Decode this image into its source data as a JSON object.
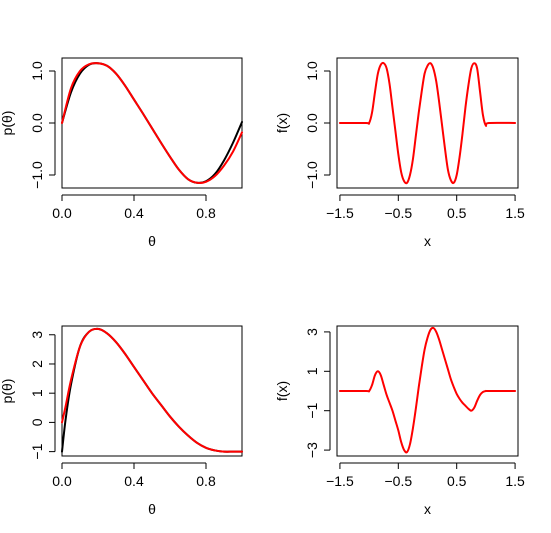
{
  "chart_data": [
    {
      "type": "line",
      "xlabel": "θ",
      "ylabel": "p(θ)",
      "xlim": [
        0,
        1
      ],
      "ylim": [
        -1.25,
        1.25
      ],
      "xticks": [
        0.0,
        0.4,
        0.8
      ],
      "xtick_labels": [
        "0.0",
        "0.4",
        "0.8"
      ],
      "yticks": [
        -1.0,
        0.0,
        1.0
      ],
      "ytick_labels": [
        "−1.0",
        "0.0",
        "1.0"
      ],
      "grid": false,
      "series": [
        {
          "color": "#000000",
          "x": [
            0.0,
            0.05,
            0.1,
            0.15,
            0.2,
            0.25,
            0.3,
            0.35,
            0.4,
            0.45,
            0.5,
            0.55,
            0.6,
            0.65,
            0.7,
            0.75,
            0.8,
            0.85,
            0.9,
            0.95,
            1.0
          ],
          "y": [
            0.0,
            0.59,
            0.95,
            1.12,
            1.15,
            1.1,
            0.95,
            0.72,
            0.45,
            0.18,
            -0.1,
            -0.38,
            -0.65,
            -0.9,
            -1.08,
            -1.15,
            -1.12,
            -0.98,
            -0.72,
            -0.38,
            0.02
          ]
        },
        {
          "color": "#ff0000",
          "x": [
            0.0,
            0.05,
            0.1,
            0.15,
            0.2,
            0.25,
            0.3,
            0.35,
            0.4,
            0.45,
            0.5,
            0.55,
            0.6,
            0.65,
            0.7,
            0.75,
            0.8,
            0.85,
            0.9,
            0.95,
            1.0
          ],
          "y": [
            0.0,
            0.67,
            1.0,
            1.13,
            1.15,
            1.1,
            0.95,
            0.72,
            0.45,
            0.18,
            -0.1,
            -0.38,
            -0.65,
            -0.9,
            -1.08,
            -1.15,
            -1.13,
            -1.02,
            -0.82,
            -0.55,
            -0.18
          ]
        }
      ]
    },
    {
      "type": "line",
      "xlabel": "x",
      "ylabel": "f(x)",
      "xlim": [
        -1.55,
        1.55
      ],
      "ylim": [
        -1.25,
        1.25
      ],
      "xticks": [
        -1.5,
        -0.5,
        0.5,
        1.5
      ],
      "xtick_labels": [
        "−1.5",
        "−0.5",
        "0.5",
        "1.5"
      ],
      "yticks": [
        -1.0,
        0.0,
        1.0
      ],
      "ytick_labels": [
        "−1.0",
        "0.0",
        "1.0"
      ],
      "grid": false,
      "series": [
        {
          "color": "#ff0000",
          "x": [
            -1.5,
            -1.05,
            -1.0,
            -0.95,
            -0.9,
            -0.85,
            -0.8,
            -0.75,
            -0.7,
            -0.65,
            -0.6,
            -0.55,
            -0.5,
            -0.45,
            -0.4,
            -0.35,
            -0.3,
            -0.25,
            -0.2,
            -0.15,
            -0.1,
            -0.05,
            0.0,
            0.05,
            0.1,
            0.15,
            0.2,
            0.25,
            0.3,
            0.35,
            0.4,
            0.45,
            0.5,
            0.55,
            0.6,
            0.65,
            0.7,
            0.75,
            0.8,
            0.85,
            0.9,
            0.95,
            1.0,
            1.05,
            1.5
          ],
          "y": [
            0,
            0,
            0,
            0.2,
            0.59,
            0.95,
            1.12,
            1.15,
            1.05,
            0.75,
            0.3,
            -0.15,
            -0.6,
            -0.95,
            -1.12,
            -1.15,
            -1.0,
            -0.7,
            -0.25,
            0.2,
            0.6,
            0.95,
            1.1,
            1.15,
            1.05,
            0.8,
            0.4,
            -0.05,
            -0.5,
            -0.9,
            -1.1,
            -1.15,
            -1.0,
            -0.65,
            -0.2,
            0.3,
            0.72,
            1.05,
            1.15,
            1.05,
            0.6,
            0.15,
            -0.05,
            0,
            0
          ]
        }
      ]
    },
    {
      "type": "line",
      "xlabel": "θ",
      "ylabel": "p(θ)",
      "xlim": [
        0,
        1
      ],
      "ylim": [
        -1.15,
        3.3
      ],
      "xticks": [
        0.0,
        0.4,
        0.8
      ],
      "xtick_labels": [
        "0.0",
        "0.4",
        "0.8"
      ],
      "yticks": [
        -1,
        0,
        1,
        2,
        3
      ],
      "ytick_labels": [
        "−1",
        "0",
        "1",
        "2",
        "3"
      ],
      "grid": false,
      "series": [
        {
          "color": "#000000",
          "x": [
            0.0,
            0.02,
            0.05,
            0.1,
            0.15,
            0.2,
            0.25,
            0.3,
            0.35,
            0.4,
            0.45,
            0.5,
            0.55,
            0.6,
            0.65,
            0.7,
            0.75,
            0.8,
            0.85,
            0.9,
            0.95,
            1.0
          ],
          "y": [
            -1.0,
            0.1,
            1.3,
            2.6,
            3.1,
            3.2,
            3.05,
            2.75,
            2.35,
            1.9,
            1.45,
            1.0,
            0.6,
            0.2,
            -0.15,
            -0.45,
            -0.7,
            -0.87,
            -0.96,
            -1.0,
            -1.0,
            -1.0
          ]
        },
        {
          "color": "#ff0000",
          "x": [
            0.0,
            0.02,
            0.05,
            0.1,
            0.15,
            0.2,
            0.25,
            0.3,
            0.35,
            0.4,
            0.45,
            0.5,
            0.55,
            0.6,
            0.65,
            0.7,
            0.75,
            0.8,
            0.85,
            0.9,
            0.95,
            1.0
          ],
          "y": [
            0.0,
            0.55,
            1.45,
            2.6,
            3.1,
            3.2,
            3.05,
            2.75,
            2.35,
            1.9,
            1.45,
            1.0,
            0.6,
            0.2,
            -0.15,
            -0.45,
            -0.7,
            -0.87,
            -0.96,
            -1.0,
            -1.0,
            -1.0
          ]
        }
      ]
    },
    {
      "type": "line",
      "xlabel": "x",
      "ylabel": "f(x)",
      "xlim": [
        -1.55,
        1.55
      ],
      "ylim": [
        -3.3,
        3.3
      ],
      "xticks": [
        -1.5,
        -0.5,
        0.5,
        1.5
      ],
      "xtick_labels": [
        "−1.5",
        "−0.5",
        "0.5",
        "1.5"
      ],
      "yticks": [
        -3,
        -1,
        1,
        3
      ],
      "ytick_labels": [
        "−3",
        "−1",
        "1",
        "3"
      ],
      "grid": false,
      "series": [
        {
          "color": "#ff0000",
          "x": [
            -1.5,
            -1.05,
            -1.0,
            -0.95,
            -0.9,
            -0.85,
            -0.8,
            -0.75,
            -0.7,
            -0.65,
            -0.6,
            -0.55,
            -0.5,
            -0.45,
            -0.4,
            -0.35,
            -0.3,
            -0.25,
            -0.2,
            -0.15,
            -0.1,
            -0.05,
            0.0,
            0.05,
            0.1,
            0.15,
            0.2,
            0.25,
            0.3,
            0.35,
            0.4,
            0.45,
            0.5,
            0.55,
            0.6,
            0.65,
            0.7,
            0.75,
            0.8,
            0.85,
            0.9,
            0.95,
            1.0,
            1.05,
            1.5
          ],
          "y": [
            0,
            0,
            0,
            0.3,
            0.8,
            1.0,
            0.8,
            0.3,
            -0.2,
            -0.6,
            -1.0,
            -1.5,
            -2.0,
            -2.6,
            -3.0,
            -3.1,
            -2.7,
            -1.9,
            -0.9,
            0.2,
            1.2,
            2.1,
            2.7,
            3.1,
            3.2,
            3.0,
            2.6,
            2.1,
            1.6,
            1.1,
            0.6,
            0.2,
            -0.15,
            -0.4,
            -0.6,
            -0.75,
            -0.9,
            -1.0,
            -0.85,
            -0.5,
            -0.2,
            -0.05,
            0,
            0,
            0
          ]
        }
      ]
    }
  ]
}
